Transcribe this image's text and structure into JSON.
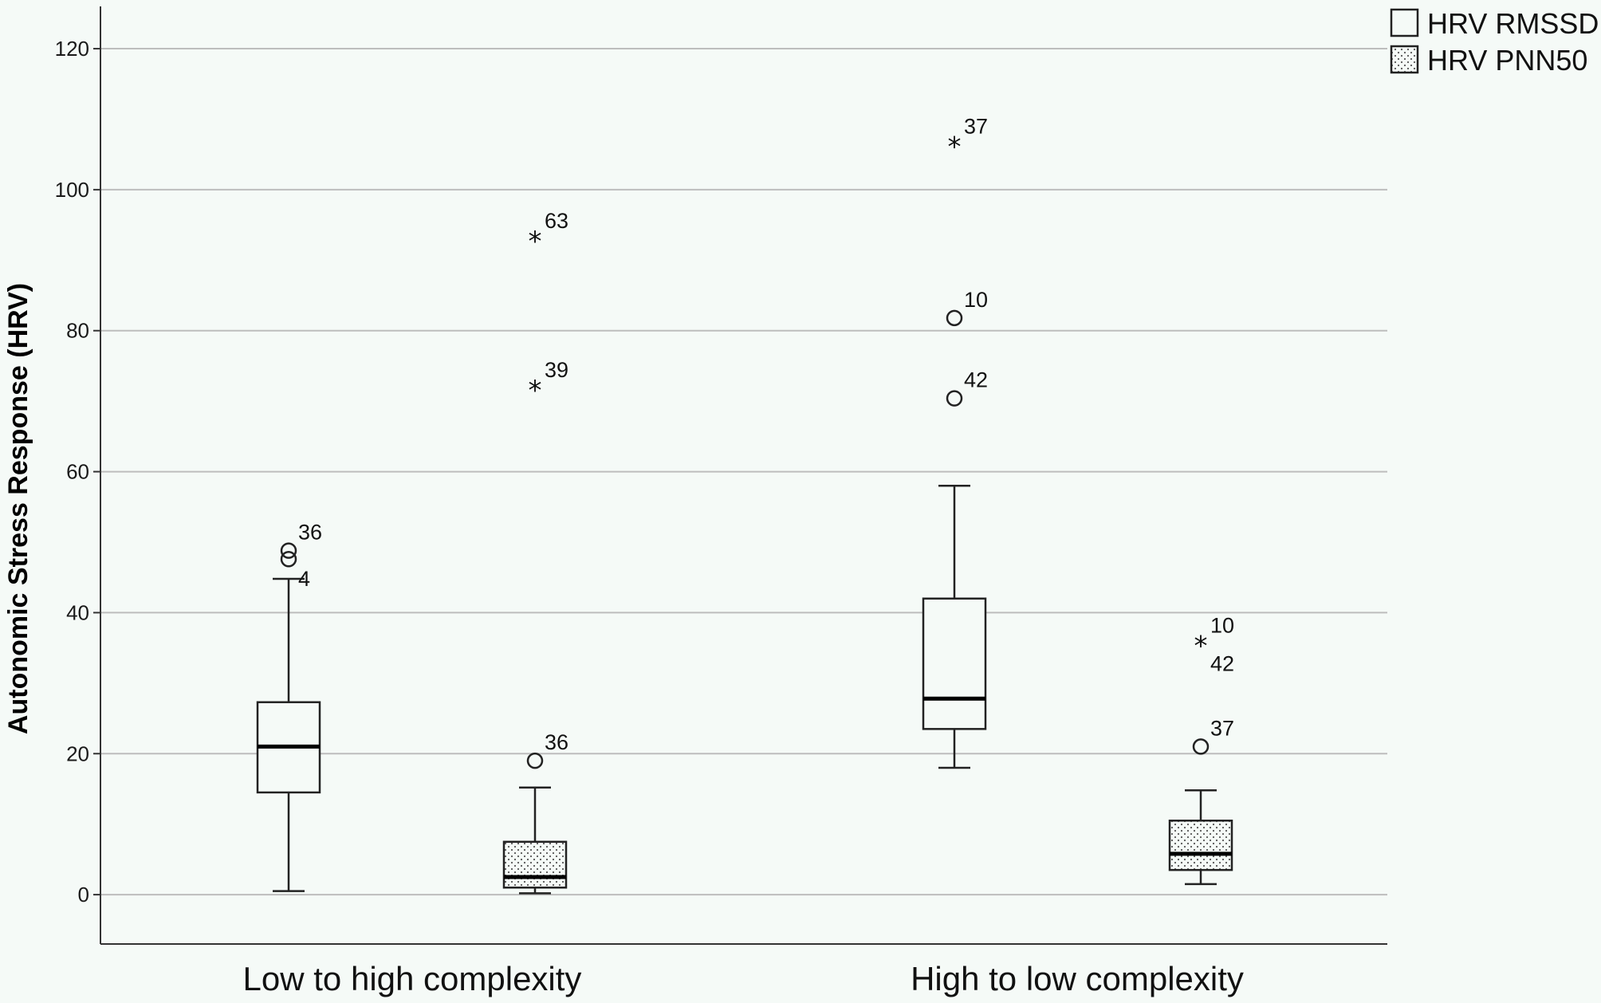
{
  "chart_data": {
    "type": "boxplot",
    "ylabel": "Autonomic Stress Response (HRV)",
    "ylim": [
      -7,
      126
    ],
    "yticks": [
      0,
      20,
      40,
      60,
      80,
      100,
      120
    ],
    "grid": true,
    "legend_position": "top-right",
    "categories": [
      "Low to high complexity",
      "High to low complexity"
    ],
    "series": [
      {
        "name": "HRV RMSSD",
        "pattern": "none",
        "boxes": [
          {
            "min": 0.5,
            "q1": 14.5,
            "median": 21,
            "q3": 27.3,
            "max": 44.8,
            "outliers": [
              {
                "value": 48.8,
                "label": "36",
                "marker": "circle"
              },
              {
                "value": 47.6,
                "label": "4",
                "marker": "circle"
              }
            ]
          },
          {
            "min": 18,
            "q1": 23.5,
            "median": 27.8,
            "q3": 42,
            "max": 58,
            "outliers": [
              {
                "value": 106.4,
                "label": "37",
                "marker": "star"
              },
              {
                "value": 81.8,
                "label": "10",
                "marker": "circle"
              },
              {
                "value": 70.4,
                "label": "42",
                "marker": "circle"
              }
            ]
          }
        ]
      },
      {
        "name": "HRV PNN50",
        "pattern": "dotted",
        "boxes": [
          {
            "min": 0.2,
            "q1": 1,
            "median": 2.5,
            "q3": 7.5,
            "max": 15.2,
            "outliers": [
              {
                "value": 93,
                "label": "63",
                "marker": "star"
              },
              {
                "value": 71.8,
                "label": "39",
                "marker": "star"
              },
              {
                "value": 19,
                "label": "36",
                "marker": "circle"
              }
            ]
          },
          {
            "min": 1.5,
            "q1": 3.5,
            "median": 5.8,
            "q3": 10.5,
            "max": 14.8,
            "outliers": [
              {
                "value": 35.6,
                "label": "10",
                "marker": "star"
              },
              {
                "value": 35.6,
                "label": "42",
                "marker": "star"
              },
              {
                "value": 21,
                "label": "37",
                "marker": "circle"
              }
            ]
          }
        ]
      }
    ],
    "colors": {
      "background": "#f5faf7",
      "box_fill": "#f5faf7",
      "gridline": "#bdbdbd",
      "stroke": "#222222"
    }
  }
}
